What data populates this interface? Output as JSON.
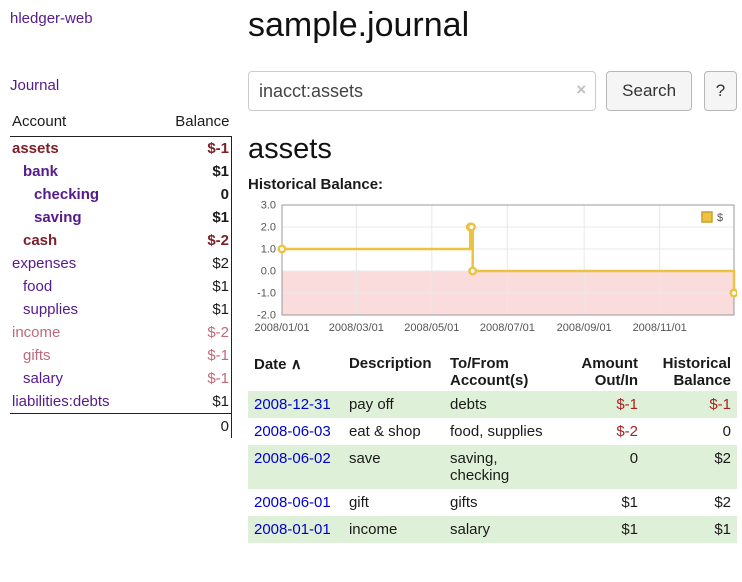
{
  "colors": {
    "purple": "#551a8b",
    "maroon": "#7d2029",
    "rose": "#bf6a7a",
    "black": "#1a1a1a",
    "link_blue": "#0000cc",
    "negative_red": "#aa2222",
    "row_green": "#dff0d8"
  },
  "sidebar": {
    "app_title": "hledger-web",
    "journal_link": "Journal",
    "accounts": {
      "col_account": "Account",
      "col_balance": "Balance",
      "rows": [
        {
          "account": "assets",
          "balance": "$-1",
          "indent": 0,
          "bold": true,
          "account_color": "maroon",
          "balance_color": "maroon"
        },
        {
          "account": "bank",
          "balance": "$1",
          "indent": 1,
          "bold": true,
          "account_color": "purple",
          "balance_color": "black"
        },
        {
          "account": "checking",
          "balance": "0",
          "indent": 2,
          "bold": true,
          "account_color": "purple",
          "balance_color": "black"
        },
        {
          "account": "saving",
          "balance": "$1",
          "indent": 2,
          "bold": true,
          "account_color": "purple",
          "balance_color": "black"
        },
        {
          "account": "cash",
          "balance": "$-2",
          "indent": 1,
          "bold": true,
          "account_color": "maroon",
          "balance_color": "maroon"
        },
        {
          "account": "expenses",
          "balance": "$2",
          "indent": 0,
          "bold": false,
          "account_color": "purple",
          "balance_color": "black"
        },
        {
          "account": "food",
          "balance": "$1",
          "indent": 1,
          "bold": false,
          "account_color": "purple",
          "balance_color": "black"
        },
        {
          "account": "supplies",
          "balance": "$1",
          "indent": 1,
          "bold": false,
          "account_color": "purple",
          "balance_color": "black"
        },
        {
          "account": "income",
          "balance": "$-2",
          "indent": 0,
          "bold": false,
          "account_color": "rose",
          "balance_color": "rose"
        },
        {
          "account": "gifts",
          "balance": "$-1",
          "indent": 1,
          "bold": false,
          "account_color": "rose",
          "balance_color": "rose"
        },
        {
          "account": "salary",
          "balance": "$-1",
          "indent": 1,
          "bold": false,
          "account_color": "purple",
          "balance_color": "rose"
        },
        {
          "account": "liabilities:debts",
          "balance": "$1",
          "indent": 0,
          "bold": false,
          "account_color": "purple",
          "balance_color": "black"
        }
      ],
      "total": "0"
    }
  },
  "main": {
    "title": "sample.journal",
    "search": {
      "value": "inacct:assets",
      "clear_icon": "×",
      "search_button": "Search",
      "help_button": "?"
    },
    "account_heading": "assets",
    "chart_title": "Historical Balance:"
  },
  "chart_data": {
    "type": "line",
    "step": true,
    "title": "Historical Balance of assets",
    "legend": [
      {
        "label": "$",
        "color": "#edc240"
      }
    ],
    "xlim_days": [
      0,
      365
    ],
    "ylim": [
      -2,
      3
    ],
    "y_ticks": [
      {
        "label": "3.0",
        "value": 3
      },
      {
        "label": "2.0",
        "value": 2
      },
      {
        "label": "1.0",
        "value": 1
      },
      {
        "label": "0.0",
        "value": 0
      },
      {
        "label": "-1.0",
        "value": -1
      },
      {
        "label": "-2.0",
        "value": -2
      }
    ],
    "x_ticks": [
      {
        "label": "2008/01/01",
        "day": 0
      },
      {
        "label": "2008/03/01",
        "day": 60
      },
      {
        "label": "2008/05/01",
        "day": 121
      },
      {
        "label": "2008/07/01",
        "day": 182
      },
      {
        "label": "2008/09/01",
        "day": 244
      },
      {
        "label": "2008/11/01",
        "day": 305
      }
    ],
    "series": [
      {
        "name": "$",
        "color": "#edc240",
        "points": [
          {
            "date": "2008-01-01",
            "day": 0,
            "value": 1
          },
          {
            "date": "2008-06-01",
            "day": 152,
            "value": 2
          },
          {
            "date": "2008-06-02",
            "day": 153,
            "value": 2
          },
          {
            "date": "2008-06-03",
            "day": 154,
            "value": 0
          },
          {
            "date": "2008-12-31",
            "day": 365,
            "value": -1
          }
        ]
      }
    ],
    "negative_region_color": "#fbdcdc",
    "grid_color": "#e8e8e8",
    "border_color": "#999999",
    "tick_label_color": "#545454"
  },
  "register": {
    "headers": {
      "date": "Date",
      "sort_indicator": "∧",
      "description": "Description",
      "account": "To/From Account(s)",
      "amount": "Amount Out/In",
      "balance": "Historical Balance"
    },
    "rows": [
      {
        "date": "2008-12-31",
        "description": "pay off",
        "account": "debts",
        "amount": "$-1",
        "balance": "$-1",
        "amount_negative": true,
        "balance_negative": true,
        "shaded": true
      },
      {
        "date": "2008-06-03",
        "description": "eat & shop",
        "account": "food, supplies",
        "amount": "$-2",
        "balance": "0",
        "amount_negative": true,
        "balance_negative": false,
        "shaded": false
      },
      {
        "date": "2008-06-02",
        "description": "save",
        "account": "saving,\nchecking",
        "amount": "0",
        "balance": "$2",
        "amount_negative": false,
        "balance_negative": false,
        "shaded": true
      },
      {
        "date": "2008-06-01",
        "description": "gift",
        "account": "gifts",
        "amount": "$1",
        "balance": "$2",
        "amount_negative": false,
        "balance_negative": false,
        "shaded": false
      },
      {
        "date": "2008-01-01",
        "description": "income",
        "account": "salary",
        "amount": "$1",
        "balance": "$1",
        "amount_negative": false,
        "balance_negative": false,
        "shaded": true
      }
    ]
  }
}
